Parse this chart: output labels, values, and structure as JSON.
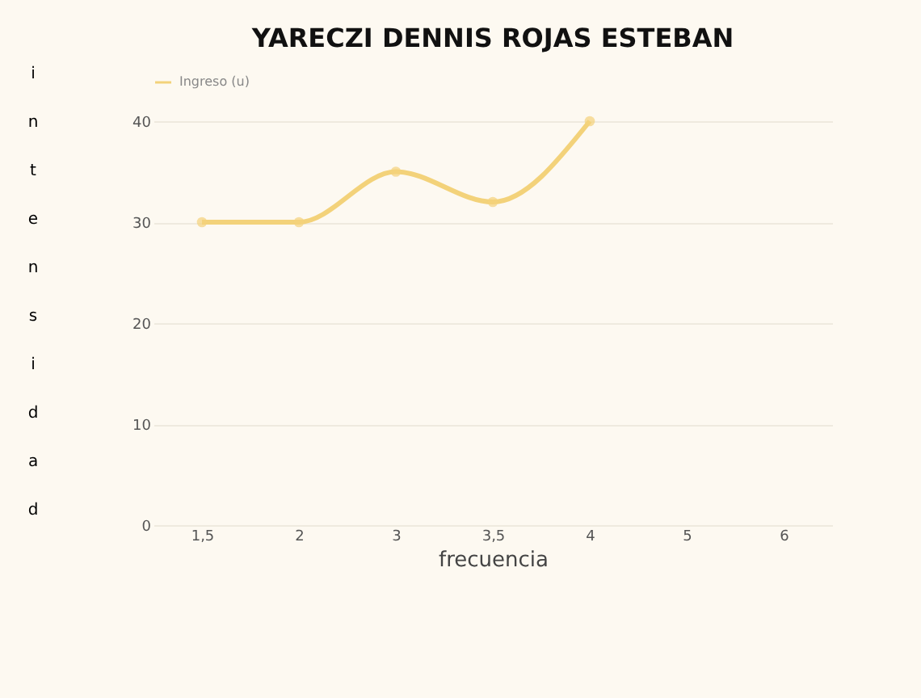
{
  "chart_data": {
    "type": "line",
    "title": "YARECZI DENNIS ROJAS ESTEBAN",
    "xlabel": "frecuencia",
    "ylabel": "intensidad",
    "categories": [
      "1,5",
      "2",
      "3",
      "3,5",
      "4",
      "5",
      "6"
    ],
    "series": [
      {
        "name": "Ingreso (u)",
        "color": "#f3d27a",
        "values": [
          30,
          30,
          35,
          32,
          40,
          null,
          null
        ]
      }
    ],
    "ylim": [
      0,
      40
    ],
    "yticks": [
      0,
      10,
      20,
      30,
      40
    ],
    "grid": "y",
    "legend": "top",
    "marker": "circle",
    "line_style": "solid"
  }
}
